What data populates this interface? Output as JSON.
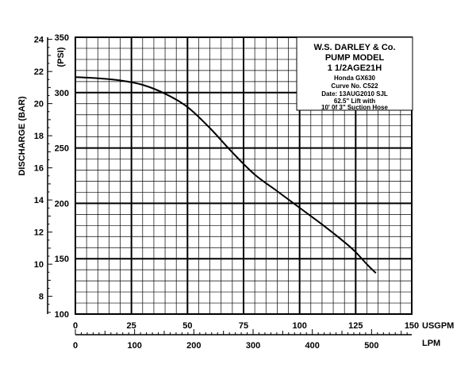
{
  "chart_data": {
    "type": "line",
    "title": "",
    "legend_box": {
      "heading": [
        "W.S. DARLEY & Co.",
        "PUMP MODEL",
        "1 1/2AGE21H"
      ],
      "notes": [
        "Honda GX630",
        "Curve No. C522",
        "Date: 13AUG2010 SJL",
        "62.5\" Lift with",
        "10' 0f 3\" Suction Hose"
      ]
    },
    "x_primary": {
      "label": "USGPM",
      "range": [
        0,
        150
      ],
      "ticks": [
        "0",
        "25",
        "50",
        "75",
        "100",
        "125",
        "150"
      ]
    },
    "x_secondary": {
      "label": "LPM",
      "range": [
        0,
        567.8
      ],
      "ticks": [
        0,
        100,
        200,
        300,
        400,
        500
      ]
    },
    "y_primary": {
      "label": "(PSI)",
      "range": [
        100,
        350
      ],
      "ticks": [
        "100",
        "150",
        "200",
        "250",
        "300",
        "350"
      ]
    },
    "y_secondary": {
      "label": "DISCHARGE (BAR)",
      "range": [
        6.895,
        24.13
      ],
      "ticks": [
        8,
        10,
        12,
        14,
        16,
        18,
        20,
        22,
        24
      ]
    },
    "grid": true,
    "series": [
      {
        "x": [
          0,
          10,
          20,
          30,
          40,
          50,
          60,
          70,
          80,
          90,
          100,
          110,
          120,
          125,
          130,
          134
        ],
        "y": [
          314,
          313,
          311,
          307,
          299,
          287,
          268,
          246,
          226,
          211,
          196,
          181,
          165,
          156,
          145,
          137
        ]
      }
    ]
  }
}
